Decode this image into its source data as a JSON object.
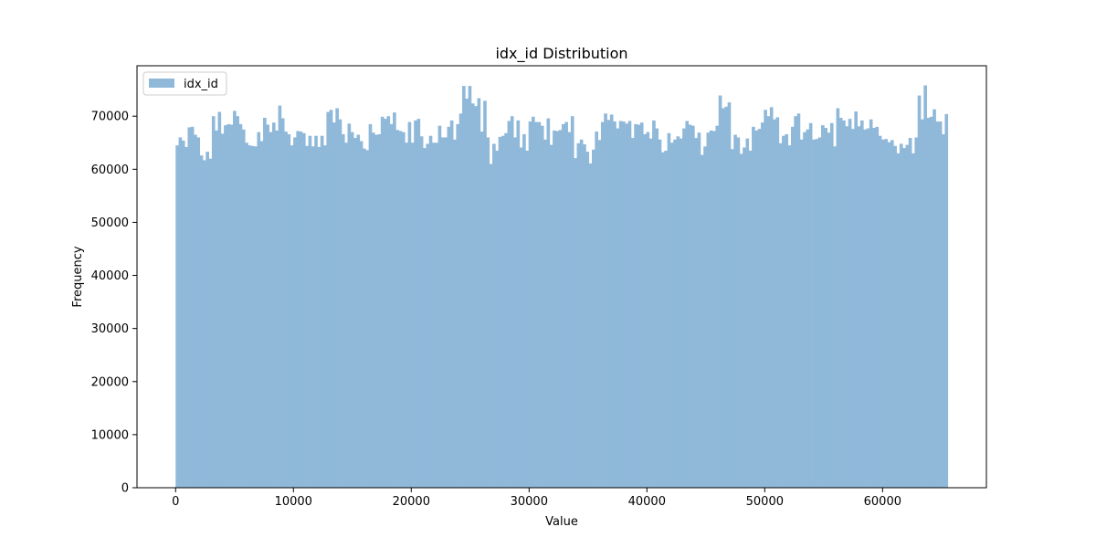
{
  "chart_data": {
    "type": "bar",
    "title": "idx_id Distribution",
    "xlabel": "Value",
    "ylabel": "Frequency",
    "legend": {
      "label": "idx_id",
      "placement": "upper-left"
    },
    "series_color": "#8fb8d9",
    "x_range": [
      0,
      65535
    ],
    "xlim": [
      -3277,
      68812
    ],
    "ylim": [
      0,
      79500
    ],
    "x_ticks": [
      0,
      10000,
      20000,
      30000,
      40000,
      50000,
      60000
    ],
    "x_tick_labels": [
      "0",
      "10000",
      "20000",
      "30000",
      "40000",
      "50000",
      "60000"
    ],
    "y_ticks": [
      0,
      10000,
      20000,
      30000,
      40000,
      50000,
      60000,
      70000
    ],
    "y_tick_labels": [
      "0",
      "10000",
      "20000",
      "30000",
      "40000",
      "50000",
      "60000",
      "70000"
    ],
    "grid": false,
    "bin_count": 256,
    "values": [
      64500,
      66000,
      65400,
      64200,
      67900,
      68000,
      66500,
      66000,
      62600,
      61700,
      63300,
      62000,
      70000,
      67300,
      70800,
      66700,
      68300,
      68500,
      68400,
      71000,
      70000,
      68500,
      67500,
      65000,
      64500,
      64400,
      64300,
      67000,
      65300,
      69700,
      68400,
      67000,
      68800,
      67300,
      72000,
      69600,
      67100,
      66600,
      64500,
      66000,
      67200,
      67100,
      66800,
      64400,
      66300,
      64300,
      66300,
      64200,
      66300,
      64500,
      70800,
      71200,
      68800,
      71500,
      69400,
      66600,
      65000,
      68600,
      67000,
      65900,
      66500,
      65300,
      63900,
      63600,
      68500,
      66900,
      66500,
      66600,
      69900,
      69500,
      70000,
      68500,
      70700,
      67400,
      67200,
      67000,
      65000,
      68900,
      65000,
      69200,
      69500,
      66200,
      64000,
      64800,
      66300,
      65000,
      65000,
      68200,
      66000,
      66000,
      68000,
      69200,
      65600,
      68500,
      70500,
      75700,
      73300,
      75700,
      72400,
      71900,
      73400,
      67100,
      72900,
      66000,
      61000,
      64800,
      63500,
      66100,
      66300,
      66800,
      69100,
      70000,
      66000,
      69200,
      64100,
      66600,
      63500,
      69000,
      69900,
      68900,
      68900,
      68200,
      65600,
      69600,
      64600,
      67300,
      67200,
      67400,
      68500,
      68900,
      67000,
      70000,
      62100,
      64900,
      65600,
      64700,
      63300,
      61100,
      63700,
      67100,
      65500,
      68900,
      70500,
      69300,
      70300,
      69000,
      67700,
      69100,
      69000,
      68600,
      69100,
      65900,
      68500,
      68400,
      68800,
      66600,
      67000,
      65800,
      69200,
      67700,
      65600,
      63200,
      63500,
      66800,
      65000,
      65600,
      66200,
      65800,
      67700,
      69100,
      68400,
      68200,
      65900,
      66900,
      62700,
      64300,
      66900,
      67300,
      67200,
      68200,
      73900,
      71500,
      71800,
      72600,
      63800,
      66500,
      66000,
      62900,
      64100,
      65800,
      63500,
      68000,
      67300,
      67600,
      68800,
      71200,
      70000,
      71700,
      69400,
      69800,
      64900,
      66300,
      66600,
      64500,
      68000,
      70000,
      70500,
      65600,
      67000,
      67500,
      68700,
      65600,
      65700,
      66000,
      68300,
      67800,
      66900,
      68700,
      64300,
      71500,
      69700,
      69200,
      68100,
      69500,
      67600,
      70900,
      68100,
      69200,
      67500,
      67700,
      69400,
      67800,
      68000,
      66300,
      65600,
      65700,
      65100,
      65500,
      64400,
      63000,
      64800,
      64000,
      64600,
      65900,
      63000,
      66000,
      73900,
      69400,
      75800,
      69700,
      69900,
      71300,
      69000,
      69000,
      66600,
      70400
    ]
  }
}
